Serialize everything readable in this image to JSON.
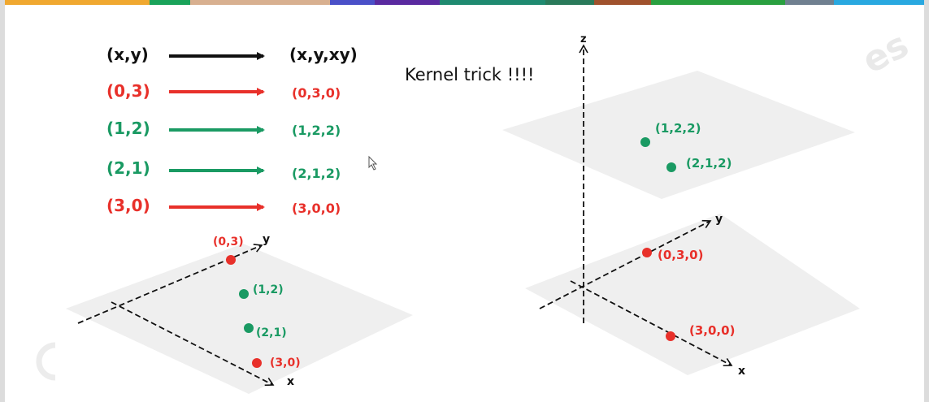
{
  "colors": {
    "red": "#e8302a",
    "green": "#1a9a63",
    "black": "#111111",
    "plane": "#efefef",
    "top_bar": [
      "#f0a830",
      "#1aa35a",
      "#d8b090",
      "#4a50c8",
      "#5a2aa0",
      "#1f8a70",
      "#2a7a5a",
      "#a0522d",
      "#2aa040",
      "#708090",
      "#29a8e0"
    ]
  },
  "title": "Kernel trick !!!!",
  "mapping": {
    "header": {
      "from": "(x,y)",
      "to": "(x,y,xy)"
    },
    "rows": [
      {
        "from": "(0,3)",
        "to": "(0,3,0)",
        "class": "red"
      },
      {
        "from": "(1,2)",
        "to": "(1,2,2)",
        "class": "green"
      },
      {
        "from": "(2,1)",
        "to": "(2,1,2)",
        "class": "green"
      },
      {
        "from": "(3,0)",
        "to": "(3,0,0)",
        "class": "red"
      }
    ]
  },
  "plot_2d": {
    "axis_x": "x",
    "axis_y": "y",
    "points": [
      {
        "label": "(0,3)",
        "class": "red"
      },
      {
        "label": "(1,2)",
        "class": "green"
      },
      {
        "label": "(2,1)",
        "class": "green"
      },
      {
        "label": "(3,0)",
        "class": "red"
      }
    ]
  },
  "plot_3d": {
    "axis_x": "x",
    "axis_y": "y",
    "axis_z": "z",
    "points": [
      {
        "label": "(1,2,2)",
        "class": "green"
      },
      {
        "label": "(2,1,2)",
        "class": "green"
      },
      {
        "label": "(0,3,0)",
        "class": "red"
      },
      {
        "label": "(3,0,0)",
        "class": "red"
      }
    ]
  },
  "icons": [
    "cursor-icon",
    "watermark-icon"
  ]
}
